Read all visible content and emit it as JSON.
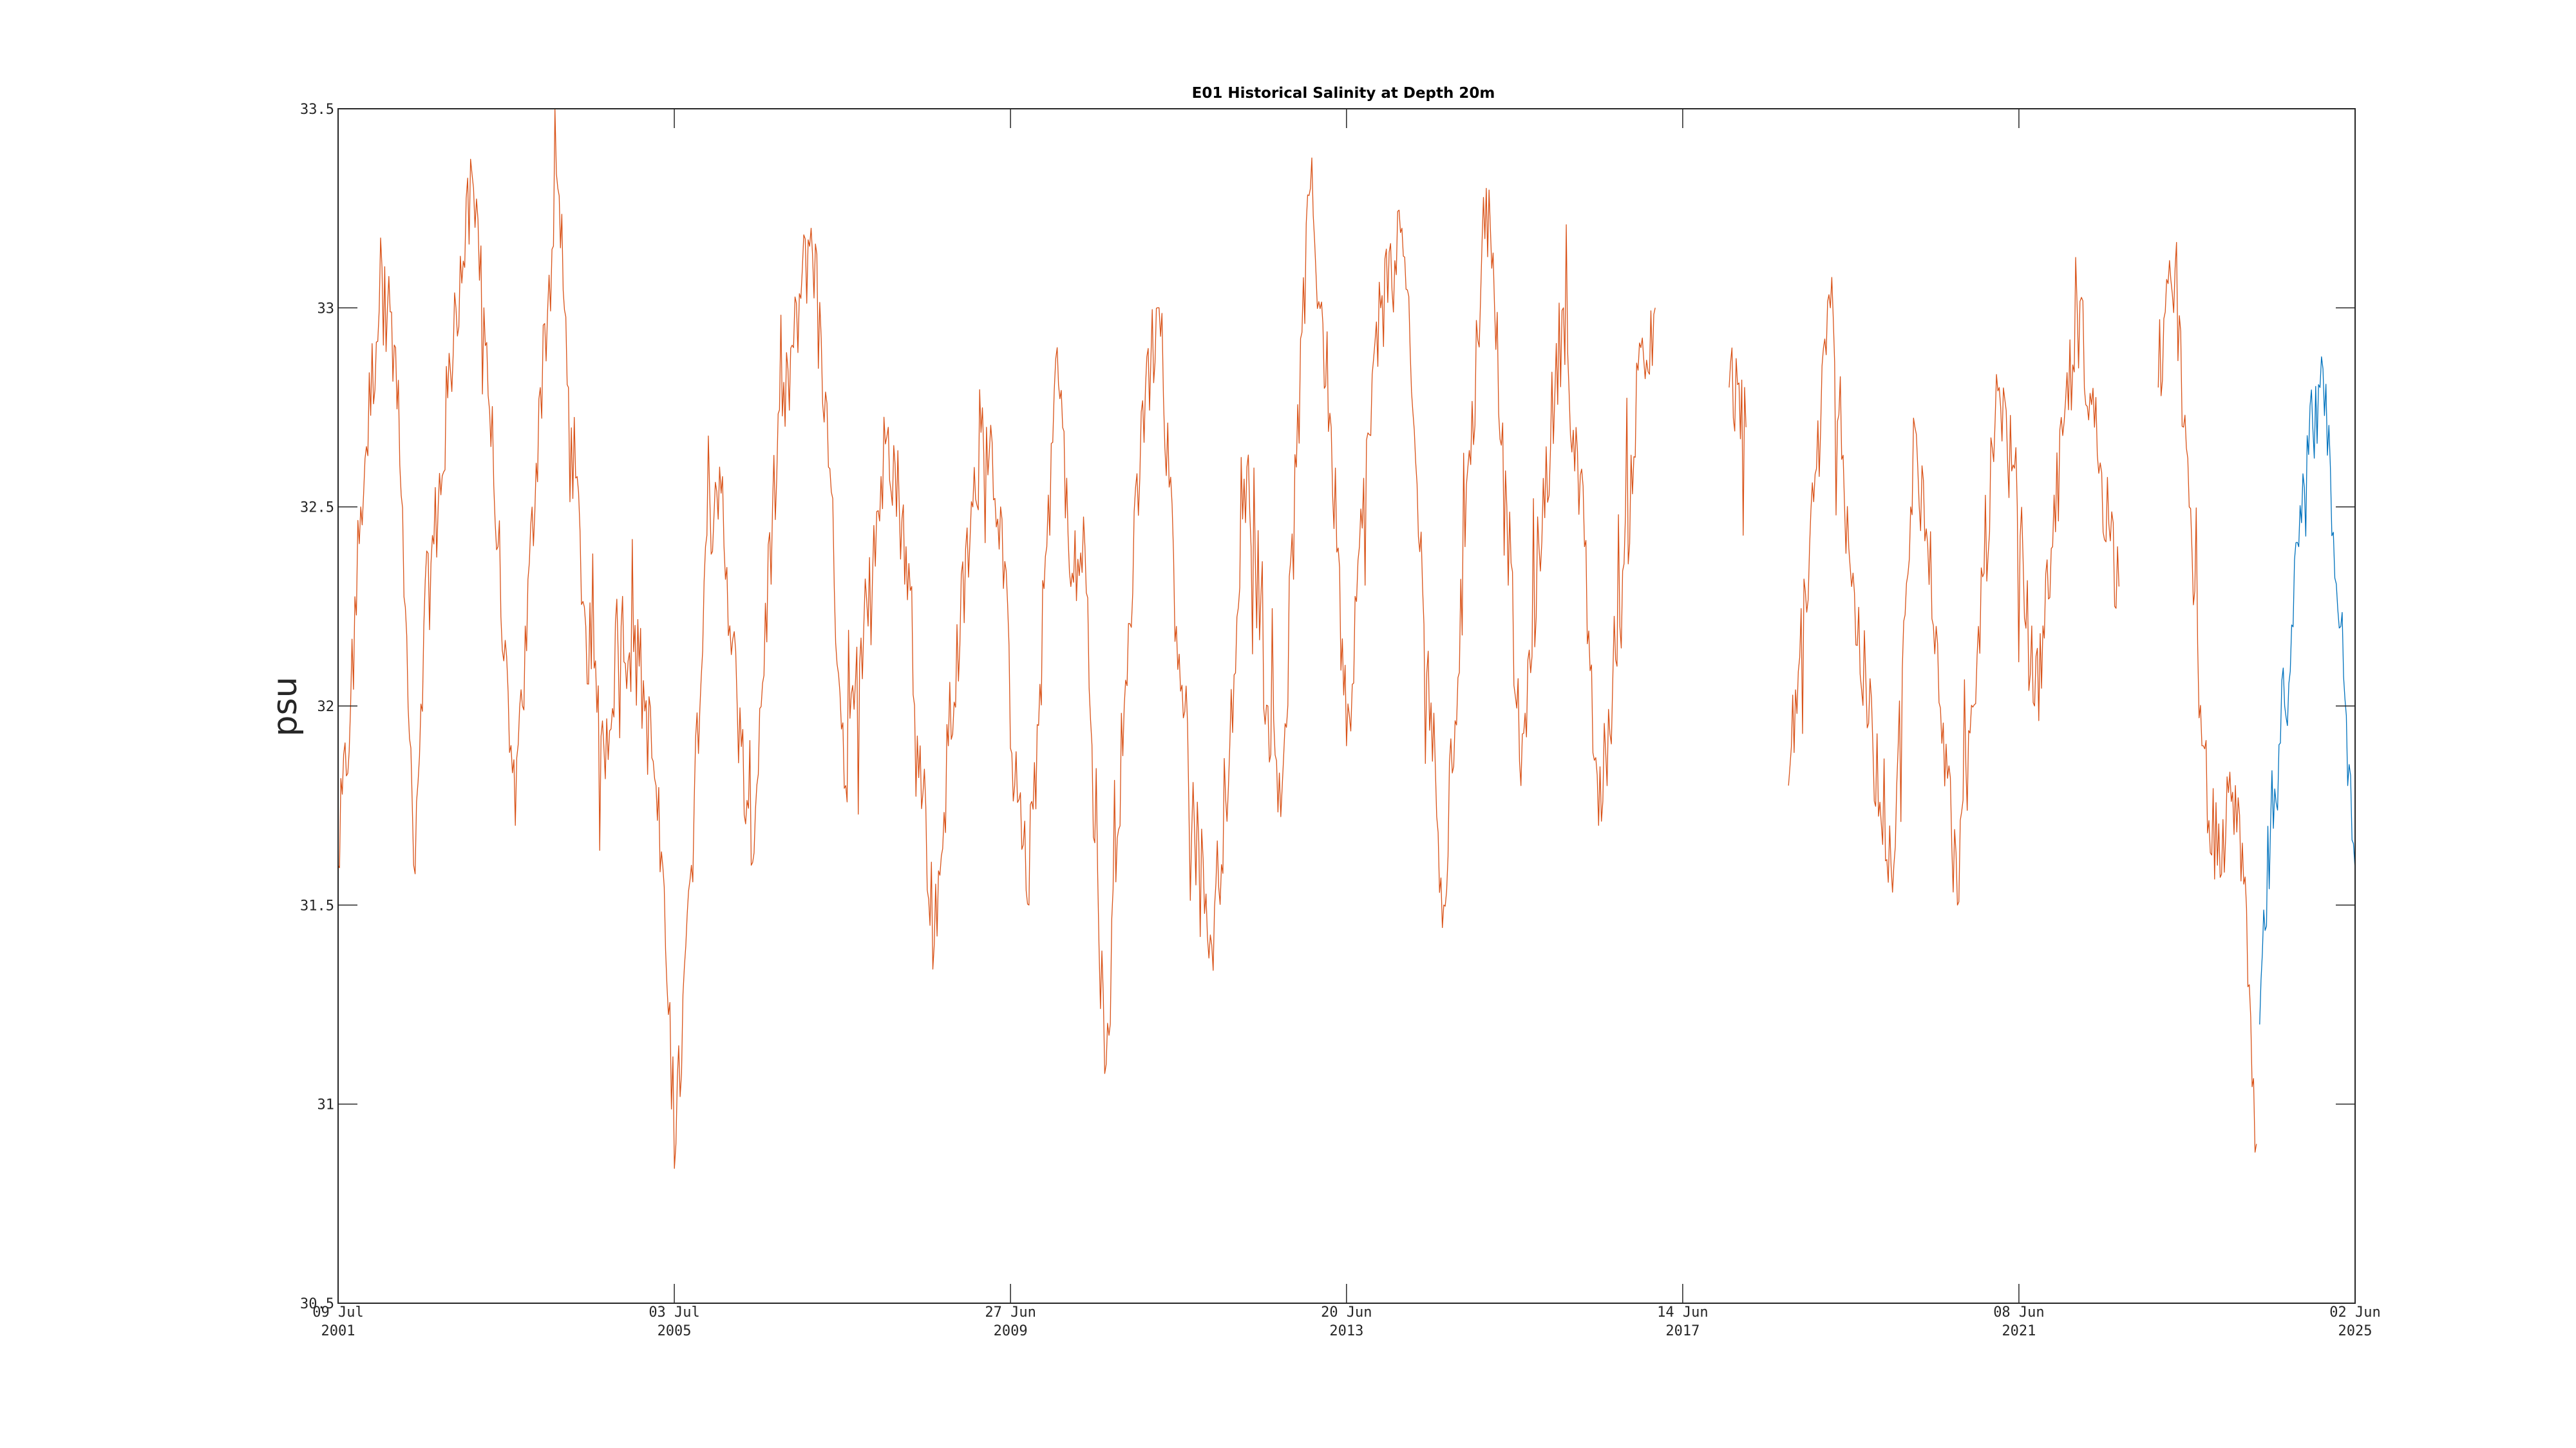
{
  "chart_data": {
    "type": "line",
    "title": "E01 Historical Salinity at Depth 20m",
    "xlabel": "",
    "ylabel": "psu",
    "ylim": [
      30.5,
      33.5
    ],
    "xlim": [
      "2001-07-09",
      "2025-06-02"
    ],
    "yticks": [
      "30.5",
      "31",
      "31.5",
      "32",
      "32.5",
      "33",
      "33.5"
    ],
    "xticks": [
      {
        "date": "2001-07-09",
        "line1": "09 Jul",
        "line2": "2001"
      },
      {
        "date": "2005-07-03",
        "line1": "03 Jul",
        "line2": "2005"
      },
      {
        "date": "2009-06-27",
        "line1": "27 Jun",
        "line2": "2009"
      },
      {
        "date": "2013-06-20",
        "line1": "20 Jun",
        "line2": "2013"
      },
      {
        "date": "2017-06-14",
        "line1": "14 Jun",
        "line2": "2017"
      },
      {
        "date": "2021-06-08",
        "line1": "08 Jun",
        "line2": "2021"
      },
      {
        "date": "2025-06-02",
        "line1": "02 Jun",
        "line2": "2025"
      }
    ],
    "grid": false,
    "series": [
      {
        "color": "#D95319",
        "points": [
          [
            "2001-07-09",
            31.6
          ],
          [
            "2001-09-01",
            32.0
          ],
          [
            "2001-10-15",
            32.5
          ],
          [
            "2002-01-15",
            33.1
          ],
          [
            "2002-03-15",
            32.9
          ],
          [
            "2002-06-01",
            31.6
          ],
          [
            "2002-07-15",
            32.2
          ],
          [
            "2002-09-15",
            32.5
          ],
          [
            "2002-12-01",
            33.0
          ],
          [
            "2003-02-15",
            33.3
          ],
          [
            "2003-04-01",
            33.0
          ],
          [
            "2003-06-01",
            32.4
          ],
          [
            "2003-08-15",
            31.7
          ],
          [
            "2003-09-15",
            32.0
          ],
          [
            "2003-12-01",
            32.8
          ],
          [
            "2004-02-15",
            33.3
          ],
          [
            "2004-04-01",
            32.8
          ],
          [
            "2004-06-15",
            32.2
          ],
          [
            "2004-09-01",
            31.9
          ],
          [
            "2004-11-15",
            32.2
          ],
          [
            "2005-02-01",
            32.1
          ],
          [
            "2005-04-15",
            31.8
          ],
          [
            "2005-06-01",
            31.3
          ],
          [
            "2005-07-10",
            30.9
          ],
          [
            "2005-09-15",
            31.6
          ],
          [
            "2005-11-15",
            32.4
          ],
          [
            "2006-01-15",
            32.6
          ],
          [
            "2006-04-01",
            32.0
          ],
          [
            "2006-06-01",
            31.6
          ],
          [
            "2006-09-01",
            32.5
          ],
          [
            "2006-12-01",
            32.9
          ],
          [
            "2007-02-15",
            33.2
          ],
          [
            "2007-05-01",
            32.6
          ],
          [
            "2007-07-15",
            31.8
          ],
          [
            "2007-10-01",
            32.2
          ],
          [
            "2008-01-15",
            32.7
          ],
          [
            "2008-04-01",
            32.4
          ],
          [
            "2008-06-01",
            31.9
          ],
          [
            "2008-08-01",
            31.4
          ],
          [
            "2008-10-01",
            31.9
          ],
          [
            "2009-01-15",
            32.5
          ],
          [
            "2009-03-15",
            32.7
          ],
          [
            "2009-05-15",
            32.5
          ],
          [
            "2009-07-15",
            31.8
          ],
          [
            "2009-09-15",
            31.5
          ],
          [
            "2009-12-01",
            32.4
          ],
          [
            "2010-01-15",
            32.9
          ],
          [
            "2010-03-15",
            32.3
          ],
          [
            "2010-05-15",
            32.4
          ],
          [
            "2010-07-15",
            31.4
          ],
          [
            "2010-08-15",
            31.1
          ],
          [
            "2010-11-01",
            32.0
          ],
          [
            "2011-02-01",
            32.8
          ],
          [
            "2011-04-01",
            33.0
          ],
          [
            "2011-06-15",
            32.2
          ],
          [
            "2011-09-01",
            31.7
          ],
          [
            "2011-11-15",
            31.4
          ],
          [
            "2012-02-01",
            31.9
          ],
          [
            "2012-04-15",
            32.6
          ],
          [
            "2012-07-15",
            32.0
          ],
          [
            "2012-09-15",
            31.8
          ],
          [
            "2012-11-15",
            32.6
          ],
          [
            "2013-01-15",
            33.3
          ],
          [
            "2013-04-15",
            32.7
          ],
          [
            "2013-06-20",
            31.9
          ],
          [
            "2013-08-15",
            32.4
          ],
          [
            "2013-11-15",
            33.0
          ],
          [
            "2014-02-15",
            33.2
          ],
          [
            "2014-05-15",
            32.3
          ],
          [
            "2014-08-15",
            31.5
          ],
          [
            "2014-11-15",
            32.4
          ],
          [
            "2015-02-15",
            33.3
          ],
          [
            "2015-05-15",
            32.5
          ],
          [
            "2015-07-15",
            31.8
          ],
          [
            "2015-10-01",
            32.4
          ],
          [
            "2016-01-15",
            33.0
          ],
          [
            "2016-04-15",
            32.4
          ],
          [
            "2016-06-15",
            31.7
          ],
          [
            "2016-09-15",
            32.2
          ],
          [
            "2016-12-15",
            32.9
          ],
          [
            "2017-02-15",
            33.0
          ],
          null,
          [
            "2018-01-01",
            32.8
          ],
          [
            "2018-03-15",
            32.7
          ],
          null,
          [
            "2018-09-15",
            31.8
          ],
          [
            "2018-12-15",
            32.4
          ],
          [
            "2019-03-15",
            33.0
          ],
          [
            "2019-06-15",
            32.3
          ],
          [
            "2019-09-15",
            31.9
          ],
          [
            "2019-12-15",
            31.6
          ],
          [
            "2020-03-15",
            32.7
          ],
          [
            "2020-06-15",
            32.2
          ],
          [
            "2020-09-15",
            31.5
          ],
          [
            "2020-12-15",
            32.2
          ],
          [
            "2021-03-15",
            32.8
          ],
          [
            "2021-06-01",
            32.5
          ],
          [
            "2021-08-15",
            32.0
          ],
          [
            "2021-11-01",
            32.4
          ],
          [
            "2022-02-15",
            33.0
          ],
          [
            "2022-05-01",
            32.7
          ],
          [
            "2022-08-15",
            32.3
          ],
          null,
          [
            "2023-02-01",
            32.8
          ],
          [
            "2023-04-15",
            33.1
          ],
          [
            "2023-06-15",
            32.5
          ],
          [
            "2023-08-15",
            31.9
          ],
          [
            "2023-10-15",
            31.6
          ],
          [
            "2024-01-01",
            31.8
          ],
          [
            "2024-03-01",
            31.3
          ],
          [
            "2024-04-01",
            30.9
          ]
        ]
      },
      {
        "color": "#0072BD",
        "points": [
          [
            "2024-04-15",
            31.2
          ],
          [
            "2024-06-01",
            31.7
          ],
          [
            "2024-08-01",
            32.0
          ],
          [
            "2024-10-01",
            32.4
          ],
          [
            "2024-12-01",
            32.7
          ],
          [
            "2025-01-01",
            32.8
          ],
          [
            "2025-02-15",
            32.6
          ],
          [
            "2025-04-01",
            32.2
          ],
          [
            "2025-05-01",
            31.8
          ],
          [
            "2025-06-01",
            31.6
          ]
        ]
      }
    ]
  }
}
